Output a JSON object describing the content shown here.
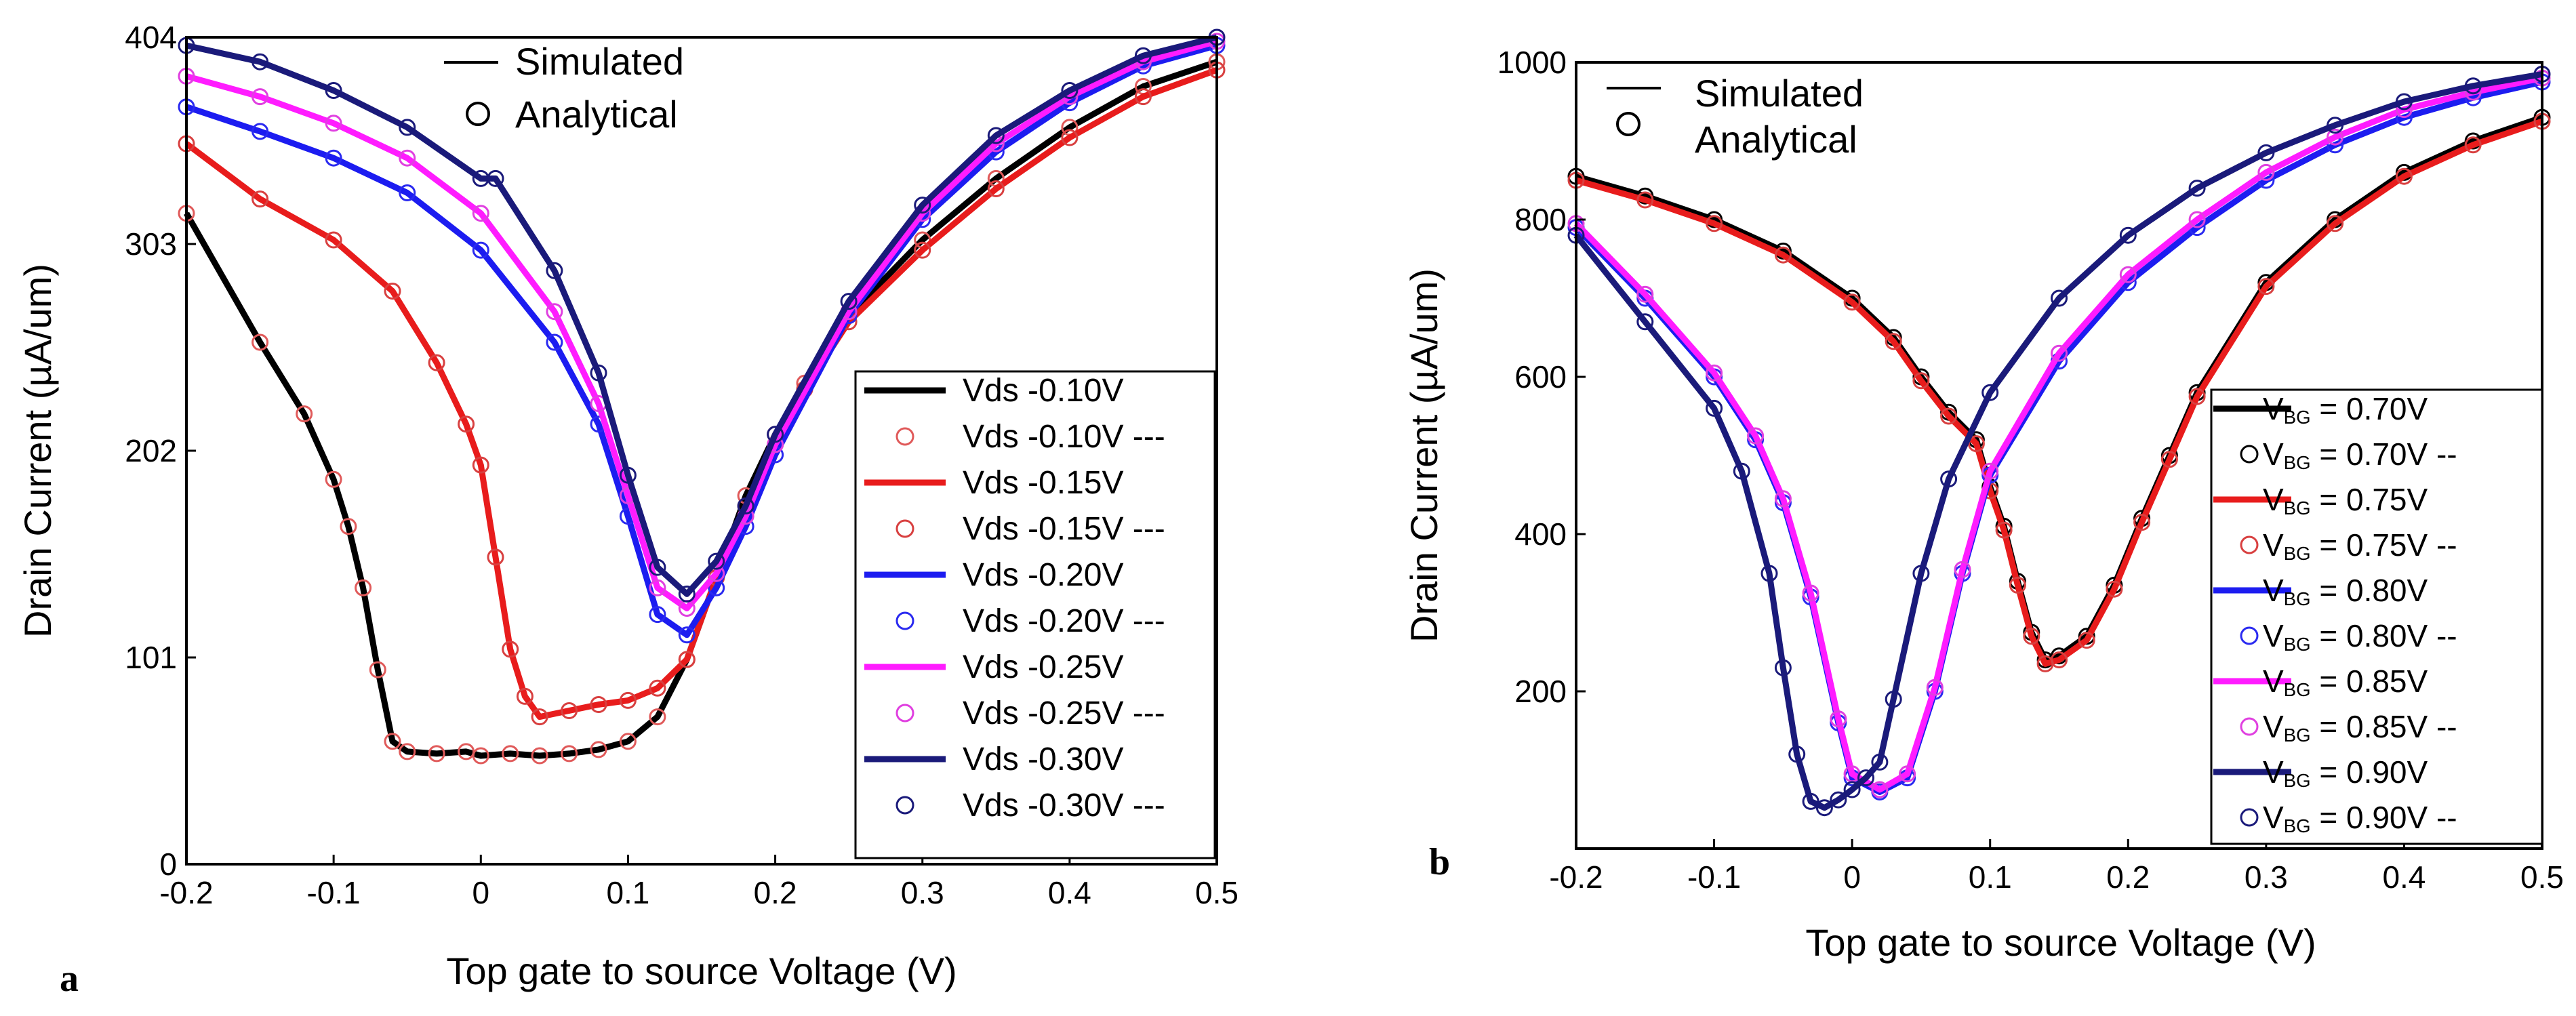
{
  "chart_data": [
    {
      "type": "line",
      "panel_label": "a",
      "xlabel": "Top gate to source Voltage (V)",
      "ylabel": "Drain Current (µA/um)",
      "xlim": [
        -0.2,
        0.5
      ],
      "ylim": [
        0,
        404
      ],
      "xticks": [
        -0.2,
        -0.1,
        0,
        0.1,
        0.2,
        0.3,
        0.4,
        0.5
      ],
      "xtick_labels": [
        "-0.2",
        "-0.1",
        "0",
        "0.1",
        "0.2",
        "0.3",
        "0.4",
        "0.5"
      ],
      "yticks": [
        0,
        101,
        202,
        303,
        404
      ],
      "ytick_labels": [
        "0",
        "101",
        "202",
        "303",
        "404"
      ],
      "style_legend": {
        "line_label": "Simulated",
        "marker_label": "Analytical"
      },
      "legend_position": "right",
      "series": [
        {
          "name": "Vds -0.10V",
          "marker_name": "Vds -0.10V ---",
          "line_color": "#000000",
          "marker_color": "#e05a5a",
          "x": [
            -0.2,
            -0.15,
            -0.12,
            -0.1,
            -0.09,
            -0.08,
            -0.07,
            -0.06,
            -0.05,
            -0.03,
            -0.01,
            0,
            0.02,
            0.04,
            0.06,
            0.08,
            0.1,
            0.12,
            0.14,
            0.16,
            0.18,
            0.2,
            0.22,
            0.25,
            0.3,
            0.35,
            0.4,
            0.45,
            0.5
          ],
          "y": [
            318,
            255,
            220,
            188,
            165,
            135,
            95,
            60,
            55,
            54,
            55,
            53,
            54,
            53,
            54,
            56,
            60,
            72,
            100,
            140,
            180,
            210,
            235,
            268,
            305,
            335,
            360,
            380,
            392
          ]
        },
        {
          "name": "Vds -0.15V",
          "marker_name": "Vds -0.15V ---",
          "line_color": "#e81c1c",
          "marker_color": "#d84040",
          "x": [
            -0.2,
            -0.15,
            -0.1,
            -0.06,
            -0.03,
            -0.01,
            0,
            0.01,
            0.02,
            0.03,
            0.04,
            0.06,
            0.08,
            0.1,
            0.12,
            0.14,
            0.16,
            0.18,
            0.2,
            0.22,
            0.25,
            0.3,
            0.35,
            0.4,
            0.45,
            0.5
          ],
          "y": [
            352,
            325,
            305,
            280,
            245,
            215,
            195,
            150,
            105,
            82,
            72,
            75,
            78,
            80,
            86,
            100,
            140,
            175,
            205,
            232,
            265,
            300,
            330,
            355,
            375,
            388
          ]
        },
        {
          "name": "Vds -0.20V",
          "marker_name": "Vds -0.20V ---",
          "line_color": "#1c1cf0",
          "marker_color": "#2a2af0",
          "x": [
            -0.2,
            -0.15,
            -0.1,
            -0.05,
            0,
            0.05,
            0.08,
            0.1,
            0.12,
            0.14,
            0.16,
            0.18,
            0.2,
            0.25,
            0.3,
            0.35,
            0.4,
            0.45,
            0.5
          ],
          "y": [
            370,
            358,
            345,
            328,
            300,
            255,
            215,
            170,
            122,
            112,
            135,
            165,
            200,
            268,
            315,
            348,
            372,
            390,
            400
          ]
        },
        {
          "name": "Vds -0.25V",
          "marker_name": "Vds -0.25V ---",
          "line_color": "#ff1cff",
          "marker_color": "#e040e0",
          "x": [
            -0.2,
            -0.15,
            -0.1,
            -0.05,
            0,
            0.05,
            0.08,
            0.1,
            0.12,
            0.14,
            0.16,
            0.18,
            0.2,
            0.25,
            0.3,
            0.35,
            0.4,
            0.45,
            0.5
          ],
          "y": [
            385,
            375,
            362,
            345,
            318,
            270,
            225,
            180,
            135,
            125,
            142,
            170,
            205,
            270,
            318,
            352,
            375,
            392,
            402
          ]
        },
        {
          "name": "Vds -0.30V",
          "marker_name": "Vds -0.30V ---",
          "line_color": "#1a1a7a",
          "marker_color": "#1a1a7a",
          "x": [
            -0.2,
            -0.15,
            -0.1,
            -0.05,
            0,
            0.01,
            0.05,
            0.08,
            0.1,
            0.12,
            0.14,
            0.16,
            0.18,
            0.2,
            0.25,
            0.3,
            0.35,
            0.4,
            0.45,
            0.5
          ],
          "y": [
            400,
            392,
            378,
            360,
            335,
            335,
            290,
            240,
            190,
            145,
            132,
            148,
            175,
            210,
            275,
            322,
            356,
            378,
            395,
            404
          ]
        }
      ]
    },
    {
      "type": "line",
      "panel_label": "b",
      "xlabel": "Top gate to source Voltage (V)",
      "ylabel": "Drain Current (µA/um)",
      "xlim": [
        -0.2,
        0.5
      ],
      "ylim": [
        0,
        1000
      ],
      "xticks": [
        -0.2,
        -0.1,
        0,
        0.1,
        0.2,
        0.3,
        0.4,
        0.5
      ],
      "xtick_labels": [
        "-0.2",
        "-0.1",
        "0",
        "0.1",
        "0.2",
        "0.3",
        "0.4",
        "0.5"
      ],
      "yticks": [
        200,
        400,
        600,
        800,
        1000
      ],
      "ytick_labels": [
        "200",
        "400",
        "600",
        "800",
        "1000"
      ],
      "style_legend": {
        "line_label": "Simulated",
        "marker_label": "Analytical"
      },
      "legend_position": "right",
      "series": [
        {
          "name": "= 0.70V",
          "marker_name": "= 0.70V --",
          "subscript_prefix": "V",
          "subscript": "BG",
          "line_color": "#000000",
          "marker_color": "#000000",
          "x": [
            -0.2,
            -0.15,
            -0.1,
            -0.05,
            0,
            0.03,
            0.05,
            0.07,
            0.09,
            0.1,
            0.11,
            0.12,
            0.13,
            0.14,
            0.15,
            0.17,
            0.19,
            0.21,
            0.23,
            0.25,
            0.3,
            0.35,
            0.4,
            0.45,
            0.5
          ],
          "y": [
            855,
            830,
            800,
            760,
            700,
            650,
            600,
            555,
            520,
            460,
            410,
            340,
            275,
            240,
            245,
            270,
            335,
            420,
            500,
            580,
            720,
            800,
            860,
            900,
            930
          ]
        },
        {
          "name": "= 0.75V",
          "marker_name": "= 0.75V --",
          "subscript_prefix": "V",
          "subscript": "BG",
          "line_color": "#e81c1c",
          "marker_color": "#d84040",
          "x": [
            -0.2,
            -0.15,
            -0.1,
            -0.05,
            0,
            0.03,
            0.05,
            0.07,
            0.09,
            0.1,
            0.11,
            0.12,
            0.13,
            0.14,
            0.15,
            0.17,
            0.19,
            0.21,
            0.23,
            0.25,
            0.3,
            0.35,
            0.4,
            0.45,
            0.5
          ],
          "y": [
            850,
            825,
            795,
            755,
            695,
            645,
            595,
            550,
            515,
            455,
            405,
            335,
            270,
            235,
            240,
            265,
            330,
            415,
            495,
            575,
            715,
            795,
            855,
            895,
            925
          ]
        },
        {
          "name": "= 0.80V",
          "marker_name": "= 0.80V --",
          "subscript_prefix": "V",
          "subscript": "BG",
          "line_color": "#1c1cf0",
          "marker_color": "#2a2af0",
          "x": [
            -0.2,
            -0.15,
            -0.1,
            -0.07,
            -0.05,
            -0.03,
            -0.01,
            0,
            0.02,
            0.04,
            0.06,
            0.08,
            0.1,
            0.15,
            0.2,
            0.25,
            0.3,
            0.35,
            0.4,
            0.45,
            0.5
          ],
          "y": [
            790,
            700,
            600,
            520,
            440,
            320,
            160,
            90,
            72,
            90,
            200,
            350,
            475,
            620,
            720,
            790,
            850,
            895,
            930,
            955,
            975
          ]
        },
        {
          "name": "= 0.85V",
          "marker_name": "= 0.85V --",
          "subscript_prefix": "V",
          "subscript": "BG",
          "line_color": "#ff1cff",
          "marker_color": "#e040e0",
          "x": [
            -0.2,
            -0.15,
            -0.1,
            -0.07,
            -0.05,
            -0.03,
            -0.01,
            0,
            0.02,
            0.04,
            0.06,
            0.08,
            0.1,
            0.15,
            0.2,
            0.25,
            0.3,
            0.35,
            0.4,
            0.45,
            0.5
          ],
          "y": [
            795,
            705,
            605,
            525,
            445,
            325,
            165,
            95,
            75,
            95,
            205,
            355,
            480,
            630,
            730,
            800,
            860,
            905,
            940,
            962,
            980
          ]
        },
        {
          "name": "= 0.90V",
          "marker_name": "= 0.90V --",
          "subscript_prefix": "V",
          "subscript": "BG",
          "line_color": "#1a1a7a",
          "marker_color": "#1a1a7a",
          "x": [
            -0.2,
            -0.15,
            -0.1,
            -0.08,
            -0.06,
            -0.05,
            -0.04,
            -0.03,
            -0.02,
            -0.01,
            0,
            0.01,
            0.02,
            0.03,
            0.05,
            0.07,
            0.1,
            0.15,
            0.2,
            0.25,
            0.3,
            0.35,
            0.4,
            0.45,
            0.5
          ],
          "y": [
            780,
            670,
            560,
            480,
            350,
            230,
            120,
            60,
            52,
            62,
            75,
            90,
            110,
            190,
            350,
            470,
            580,
            700,
            780,
            840,
            885,
            920,
            950,
            970,
            985
          ]
        }
      ]
    }
  ]
}
